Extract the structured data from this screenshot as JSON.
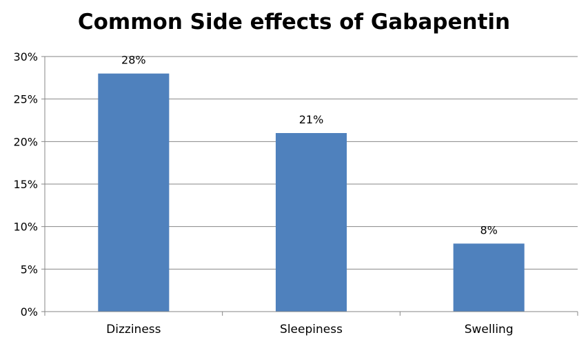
{
  "chart_data": {
    "type": "bar",
    "title": "Common Side effects of Gabapentin",
    "categories": [
      "Dizziness",
      "Sleepiness",
      "Swelling"
    ],
    "values": [
      28,
      21,
      8
    ],
    "data_labels": [
      "28%",
      "21%",
      "8%"
    ],
    "y_ticks": [
      0,
      5,
      10,
      15,
      20,
      25,
      30
    ],
    "y_tick_labels": [
      "0%",
      "5%",
      "10%",
      "15%",
      "20%",
      "25%",
      "30%"
    ],
    "ylim": [
      0,
      30
    ],
    "grid": true,
    "legend": "none",
    "xlabel": "",
    "ylabel": "",
    "colors": {
      "bar": "#4F81BD",
      "grid": "#868686",
      "axis": "#868686"
    }
  }
}
